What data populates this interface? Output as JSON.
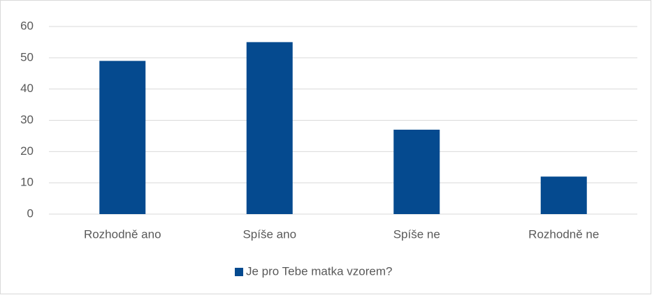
{
  "chart_data": {
    "type": "bar",
    "categories": [
      "Rozhodně ano",
      "Spíše ano",
      "Spíše ne",
      "Rozhodně ne"
    ],
    "series": [
      {
        "name": "Je pro Tebe matka vzorem?",
        "color": "#054a8f",
        "values": [
          49,
          55,
          27,
          12
        ]
      }
    ],
    "ylim": [
      0,
      60
    ],
    "yticks": [
      0,
      10,
      20,
      30,
      40,
      50,
      60
    ],
    "grid": true,
    "legend": "bottom"
  }
}
